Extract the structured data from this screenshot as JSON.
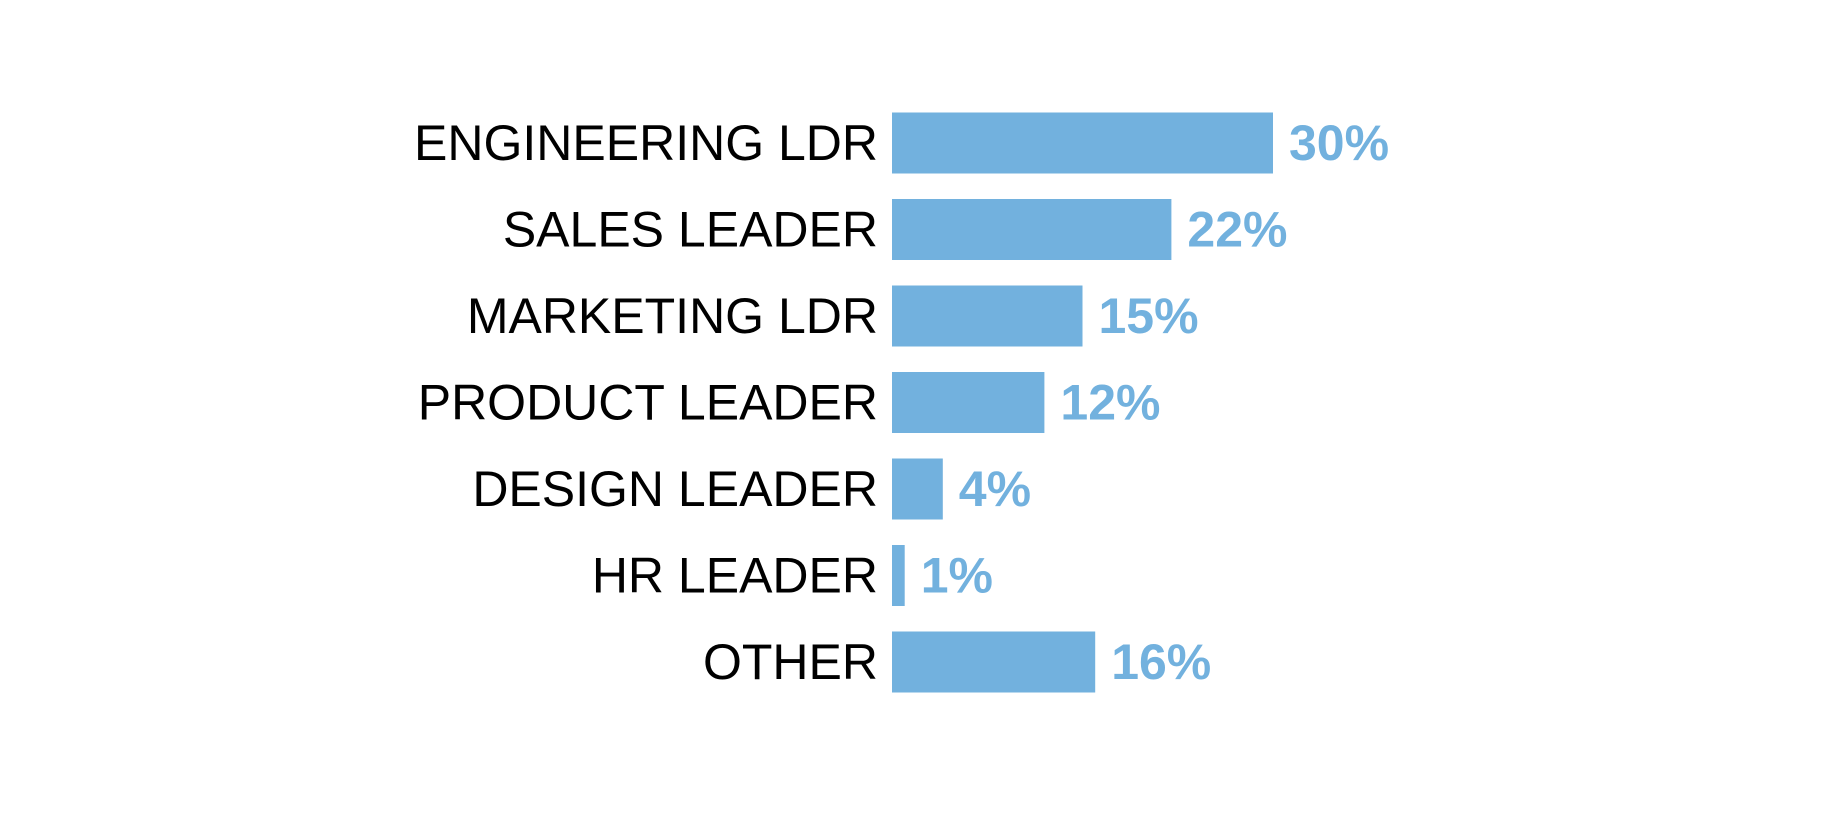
{
  "chart_data": {
    "type": "bar",
    "orientation": "horizontal",
    "categories": [
      "ENGINEERING LDR",
      "SALES LEADER",
      "MARKETING LDR",
      "PRODUCT LEADER",
      "DESIGN LEADER",
      "HR LEADER",
      "OTHER"
    ],
    "values": [
      30,
      22,
      15,
      12,
      4,
      1,
      16
    ],
    "value_labels": [
      "30%",
      "22%",
      "15%",
      "12%",
      "4%",
      "1%",
      "16%"
    ],
    "value_unit": "%",
    "xlim": [
      0,
      30
    ],
    "grid": false,
    "bar_color": "#72b1de",
    "label_color": "#000000",
    "value_label_color": "#72b1de"
  }
}
